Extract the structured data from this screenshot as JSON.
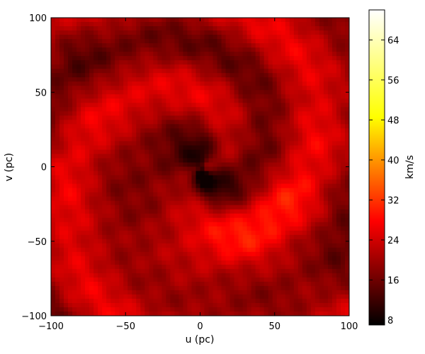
{
  "chart_data": {
    "type": "heatmap",
    "title": "",
    "xlabel": "u (pc)",
    "ylabel": "v (pc)",
    "xlim": [
      -100,
      100
    ],
    "ylim": [
      -100,
      100
    ],
    "xticks": [
      "−100",
      "−50",
      "0",
      "50",
      "100"
    ],
    "xtick_values": [
      -100,
      -50,
      0,
      50,
      100
    ],
    "yticks": [
      "−100",
      "−50",
      "0",
      "50",
      "100"
    ],
    "ytick_values": [
      -100,
      -50,
      0,
      50,
      100
    ],
    "colorbar": {
      "label": "km/s",
      "range": [
        7,
        70
      ],
      "ticks": [
        "8",
        "16",
        "24",
        "32",
        "40",
        "48",
        "56",
        "64"
      ],
      "tick_values": [
        8,
        16,
        24,
        32,
        40,
        48,
        56,
        64
      ],
      "colormap": "hot",
      "colors": [
        "#000000",
        "#ff0000",
        "#ffff00",
        "#ffffff"
      ]
    },
    "field": {
      "description_note": "",
      "mean_value": 22,
      "min_value": 10,
      "max_value": 30,
      "structure": "two-armed spiral, low-velocity core near center"
    },
    "grid": false
  }
}
